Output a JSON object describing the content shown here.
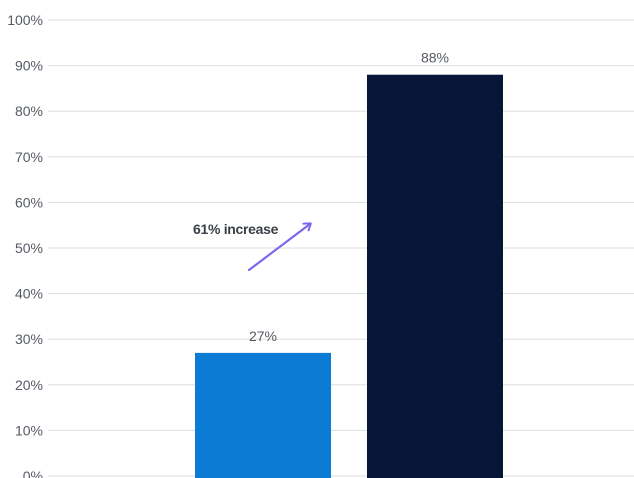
{
  "chart_data": {
    "type": "bar",
    "categories": [
      "",
      ""
    ],
    "values": [
      27,
      88
    ],
    "value_labels": [
      "27%",
      "88%"
    ],
    "colors": [
      "#0b7bd4",
      "#061538"
    ],
    "title": "",
    "xlabel": "",
    "ylabel": "",
    "ylim": [
      0,
      100
    ],
    "yticks": [
      "0%",
      "10%",
      "20%",
      "30%",
      "40%",
      "50%",
      "60%",
      "70%",
      "80%",
      "90%",
      "100%"
    ],
    "grid": true,
    "annotation": {
      "text": "61% increase",
      "arrow_color": "#7b68ee"
    }
  }
}
